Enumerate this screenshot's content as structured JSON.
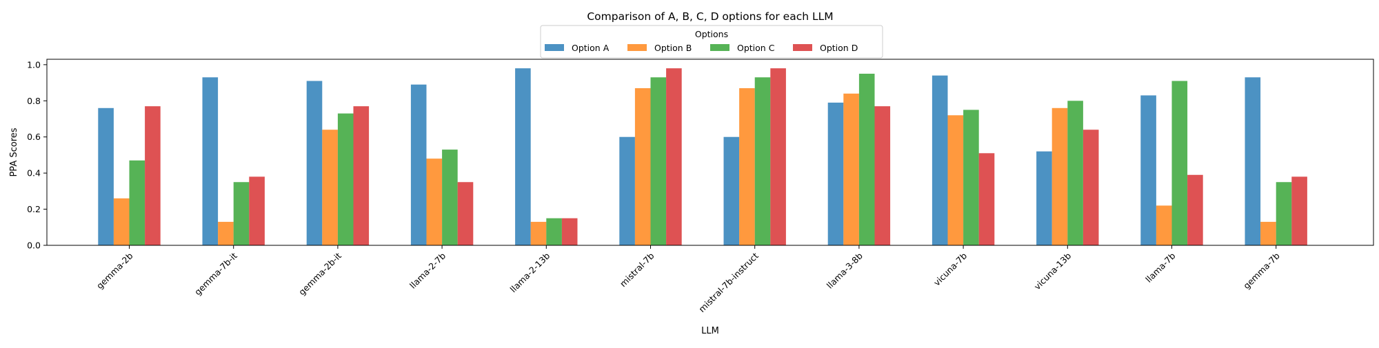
{
  "chart_data": {
    "type": "bar",
    "title": "Comparison of A, B, C, D options for each LLM",
    "xlabel": "LLM",
    "ylabel": "PPA Scores",
    "ylim": [
      0,
      1.03
    ],
    "yticks": [
      "0.0",
      "0.2",
      "0.4",
      "0.6",
      "0.8",
      "1.0"
    ],
    "ytick_values": [
      0,
      0.2,
      0.4,
      0.6,
      0.8,
      1.0
    ],
    "grid": false,
    "legend": {
      "title": "Options",
      "placement": "top-center",
      "columns": 4
    },
    "categories": [
      "gemma-2b",
      "gemma-7b-it",
      "gemma-2b-it",
      "llama-2-7b",
      "llama-2-13b",
      "mistral-7b",
      "mistral-7b-instruct",
      "llama-3-8b",
      "vicuna-7b",
      "vicuna-13b",
      "llama-7b",
      "gemma-7b"
    ],
    "series": [
      {
        "name": "Option A",
        "color": "#1f77b4",
        "values": [
          0.76,
          0.93,
          0.91,
          0.89,
          0.98,
          0.6,
          0.6,
          0.79,
          0.94,
          0.52,
          0.83,
          0.93
        ]
      },
      {
        "name": "Option B",
        "color": "#ff7f0e",
        "values": [
          0.26,
          0.13,
          0.64,
          0.48,
          0.13,
          0.87,
          0.87,
          0.84,
          0.72,
          0.76,
          0.22,
          0.13
        ]
      },
      {
        "name": "Option C",
        "color": "#2ca02c",
        "values": [
          0.47,
          0.35,
          0.73,
          0.53,
          0.15,
          0.93,
          0.93,
          0.95,
          0.75,
          0.8,
          0.91,
          0.35
        ]
      },
      {
        "name": "Option D",
        "color": "#d62728",
        "values": [
          0.77,
          0.38,
          0.77,
          0.35,
          0.15,
          0.98,
          0.98,
          0.77,
          0.51,
          0.64,
          0.39,
          0.38
        ]
      }
    ]
  }
}
